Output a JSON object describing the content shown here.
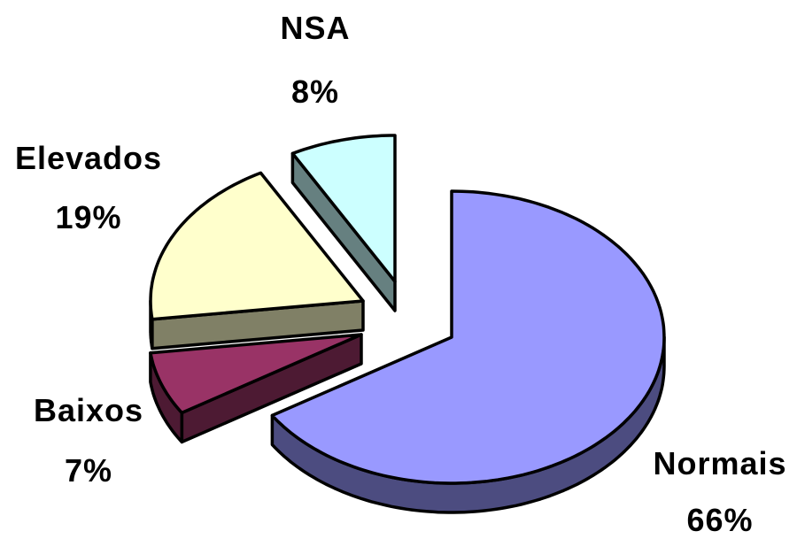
{
  "chart_data": {
    "type": "pie",
    "style": "3d-exploded",
    "title": "",
    "legend": "none",
    "slices": [
      {
        "name": "Normais",
        "value": 66,
        "label": "66%",
        "color": "#9999ff",
        "side_color": "#4c4c80"
      },
      {
        "name": "Baixos",
        "value": 7,
        "label": "7%",
        "color": "#993366",
        "side_color": "#4d1a33"
      },
      {
        "name": "Elevados",
        "value": 19,
        "label": "19%",
        "color": "#ffffcc",
        "side_color": "#808066"
      },
      {
        "name": "NSA",
        "value": 8,
        "label": "8%",
        "color": "#ccffff",
        "side_color": "#668080"
      }
    ]
  }
}
